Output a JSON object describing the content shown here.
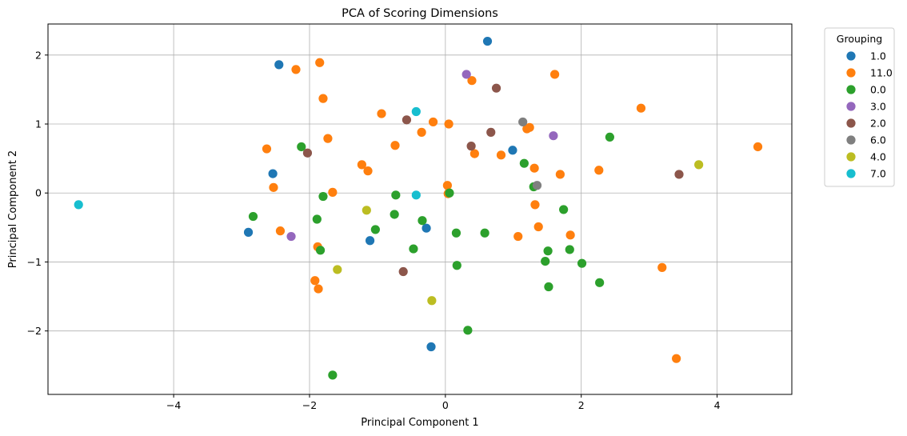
{
  "chart_data": {
    "type": "scatter",
    "title": "PCA of Scoring Dimensions",
    "xlabel": "Principal Component 1",
    "ylabel": "Principal Component 2",
    "xlim": [
      -5.85,
      5.1
    ],
    "ylim": [
      -2.92,
      2.45
    ],
    "xticks": [
      -4,
      -2,
      0,
      2,
      4
    ],
    "yticks": [
      -2,
      -1,
      0,
      1,
      2
    ],
    "grid": true,
    "legend": {
      "title": "Grouping",
      "position": "outside-right"
    },
    "series": [
      {
        "name": "1.0",
        "color": "#1f77b4",
        "points": [
          [
            0.62,
            2.2
          ],
          [
            -2.45,
            1.86
          ],
          [
            -2.54,
            0.28
          ],
          [
            0.99,
            0.62
          ],
          [
            -2.9,
            -0.57
          ],
          [
            -1.11,
            -0.69
          ],
          [
            -0.28,
            -0.51
          ],
          [
            -0.21,
            -2.23
          ]
        ]
      },
      {
        "name": "11.0",
        "color": "#ff7f0e",
        "points": [
          [
            -2.2,
            1.79
          ],
          [
            -1.85,
            1.89
          ],
          [
            -1.8,
            1.37
          ],
          [
            -1.73,
            0.79
          ],
          [
            -2.63,
            0.64
          ],
          [
            -2.53,
            0.08
          ],
          [
            -1.23,
            0.41
          ],
          [
            -1.14,
            0.32
          ],
          [
            -0.94,
            1.15
          ],
          [
            -0.74,
            0.69
          ],
          [
            -0.35,
            0.88
          ],
          [
            -0.18,
            1.03
          ],
          [
            0.05,
            1.0
          ],
          [
            0.39,
            1.63
          ],
          [
            0.43,
            0.57
          ],
          [
            0.82,
            0.55
          ],
          [
            1.2,
            0.93
          ],
          [
            1.24,
            0.95
          ],
          [
            1.31,
            0.36
          ],
          [
            1.61,
            1.72
          ],
          [
            1.69,
            0.27
          ],
          [
            2.26,
            0.33
          ],
          [
            2.88,
            1.23
          ],
          [
            4.6,
            0.67
          ],
          [
            0.03,
            0.11
          ],
          [
            0.04,
            -0.01
          ],
          [
            -1.66,
            0.01
          ],
          [
            -2.43,
            -0.55
          ],
          [
            -1.88,
            -0.78
          ],
          [
            -1.92,
            -1.27
          ],
          [
            -1.87,
            -1.39
          ],
          [
            1.07,
            -0.63
          ],
          [
            1.32,
            -0.17
          ],
          [
            1.37,
            -0.49
          ],
          [
            1.84,
            -0.61
          ],
          [
            3.19,
            -1.08
          ],
          [
            3.4,
            -2.4
          ]
        ]
      },
      {
        "name": "0.0",
        "color": "#2ca02c",
        "points": [
          [
            -2.12,
            0.67
          ],
          [
            -2.83,
            -0.34
          ],
          [
            -1.8,
            -0.05
          ],
          [
            -1.89,
            -0.38
          ],
          [
            -1.84,
            -0.83
          ],
          [
            -0.73,
            -0.03
          ],
          [
            -0.75,
            -0.31
          ],
          [
            -1.03,
            -0.53
          ],
          [
            -0.34,
            -0.4
          ],
          [
            -0.47,
            -0.81
          ],
          [
            0.06,
            0.0
          ],
          [
            0.16,
            -0.58
          ],
          [
            0.17,
            -1.05
          ],
          [
            0.58,
            -0.58
          ],
          [
            0.33,
            -1.99
          ],
          [
            1.16,
            0.43
          ],
          [
            1.3,
            0.09
          ],
          [
            1.74,
            -0.24
          ],
          [
            1.47,
            -0.99
          ],
          [
            1.51,
            -0.84
          ],
          [
            1.52,
            -1.36
          ],
          [
            1.83,
            -0.82
          ],
          [
            2.01,
            -1.02
          ],
          [
            2.27,
            -1.3
          ],
          [
            2.42,
            0.81
          ],
          [
            -1.66,
            -2.64
          ]
        ]
      },
      {
        "name": "3.0",
        "color": "#9467bd",
        "points": [
          [
            0.31,
            1.72
          ],
          [
            1.59,
            0.83
          ],
          [
            -2.27,
            -0.63
          ]
        ]
      },
      {
        "name": "2.0",
        "color": "#8c564b",
        "points": [
          [
            -2.03,
            0.58
          ],
          [
            -0.57,
            1.06
          ],
          [
            0.38,
            0.68
          ],
          [
            0.67,
            0.88
          ],
          [
            0.75,
            1.52
          ],
          [
            3.44,
            0.27
          ],
          [
            -0.62,
            -1.14
          ]
        ]
      },
      {
        "name": "6.0",
        "color": "#7f7f7f",
        "points": [
          [
            1.14,
            1.03
          ],
          [
            1.35,
            0.11
          ]
        ]
      },
      {
        "name": "4.0",
        "color": "#bcbd22",
        "points": [
          [
            3.73,
            0.41
          ],
          [
            -1.16,
            -0.25
          ],
          [
            -1.59,
            -1.11
          ],
          [
            -0.2,
            -1.56
          ]
        ]
      },
      {
        "name": "7.0",
        "color": "#17becf",
        "points": [
          [
            -5.4,
            -0.17
          ],
          [
            -0.43,
            1.18
          ],
          [
            -0.43,
            -0.03
          ]
        ]
      }
    ]
  }
}
